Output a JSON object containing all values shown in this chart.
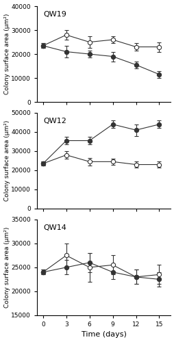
{
  "panels": [
    {
      "label": "QW19",
      "ylim": [
        0,
        40000
      ],
      "yticks": [
        0,
        10000,
        20000,
        30000,
        40000
      ],
      "ylabel": "Colony surface area (μm²)",
      "x": [
        0,
        3,
        6,
        9,
        12,
        15
      ],
      "control_y": [
        23500,
        28000,
        25000,
        26000,
        23000,
        23000
      ],
      "control_err": [
        1000,
        2000,
        2500,
        1500,
        1500,
        2000
      ],
      "treatment_y": [
        23500,
        21000,
        20000,
        19000,
        15500,
        11500
      ],
      "treatment_err": [
        1000,
        2500,
        1500,
        2000,
        1500,
        1500
      ]
    },
    {
      "label": "QW12",
      "ylim": [
        0,
        50000
      ],
      "yticks": [
        0,
        10000,
        20000,
        30000,
        40000,
        50000
      ],
      "ylabel": "Colony surface area (μm²)",
      "x": [
        0,
        3,
        6,
        9,
        12,
        15
      ],
      "control_y": [
        23500,
        28000,
        24500,
        24500,
        23000,
        23000
      ],
      "control_err": [
        1000,
        2000,
        2000,
        1500,
        1500,
        1500
      ],
      "treatment_y": [
        23500,
        35500,
        35500,
        44000,
        41000,
        44000
      ],
      "treatment_err": [
        1000,
        2000,
        2000,
        2000,
        3000,
        2000
      ]
    },
    {
      "label": "QW14",
      "ylim": [
        15000,
        35000
      ],
      "yticks": [
        15000,
        20000,
        25000,
        30000,
        35000
      ],
      "ylabel": "Colony surface area (μm²)",
      "x": [
        0,
        3,
        6,
        9,
        12,
        15
      ],
      "control_y": [
        24000,
        27500,
        25000,
        25500,
        23000,
        23500
      ],
      "control_err": [
        500,
        2500,
        3000,
        2000,
        1500,
        2000
      ],
      "treatment_y": [
        24000,
        25000,
        26000,
        24000,
        23000,
        22500
      ],
      "treatment_err": [
        500,
        1500,
        2000,
        1500,
        1500,
        1500
      ]
    }
  ],
  "xticks": [
    0,
    3,
    6,
    9,
    12,
    15
  ],
  "xlabel": "Time (days)",
  "line_color": "#333333",
  "marker_color": "#333333",
  "marker_size": 4.5,
  "capsize": 2.5,
  "elinewidth": 0.8,
  "linewidth": 0.8,
  "label_fontsize": 8,
  "tick_fontsize": 6.5,
  "ylabel_fontsize": 6.5
}
